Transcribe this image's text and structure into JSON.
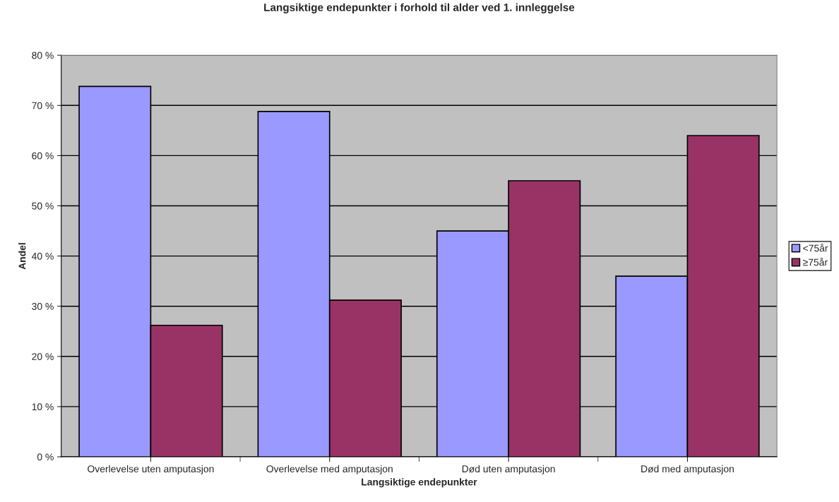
{
  "chart_data": {
    "type": "bar",
    "title": "Langsiktige endepunkter i forhold til alder ved 1. innleggelse",
    "xlabel": "Langsiktige endepunkter",
    "ylabel": "Andel",
    "categories": [
      "Overlevelse uten amputasjon",
      "Overlevelse med amputasjon",
      "Død uten amputasjon",
      "Død med amputasjon"
    ],
    "series": [
      {
        "name": "<75år",
        "color": "#9999ff",
        "values": [
          73.8,
          68.8,
          45,
          36
        ]
      },
      {
        "name": "≥75år",
        "color": "#993366",
        "values": [
          26.2,
          31.2,
          55,
          64
        ]
      }
    ],
    "ylim": [
      0,
      80
    ],
    "yticks": [
      {
        "value": 0,
        "label": "0 %"
      },
      {
        "value": 10,
        "label": "10 %"
      },
      {
        "value": 20,
        "label": "20 %"
      },
      {
        "value": 30,
        "label": "30 %"
      },
      {
        "value": 40,
        "label": "40 %"
      },
      {
        "value": 50,
        "label": "50 %"
      },
      {
        "value": 60,
        "label": "60 %"
      },
      {
        "value": 70,
        "label": "70 %"
      },
      {
        "value": 80,
        "label": "80 %"
      }
    ],
    "grid": "y",
    "legend": "right"
  }
}
